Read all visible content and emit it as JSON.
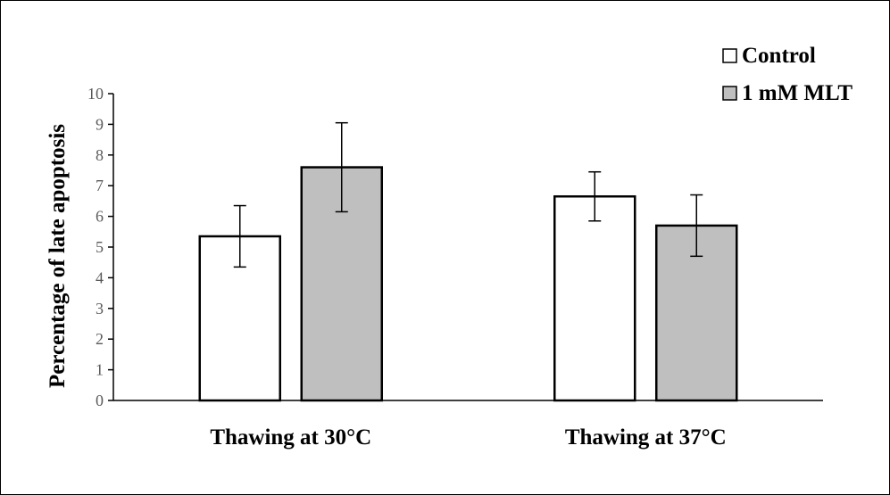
{
  "chart_data": {
    "type": "bar",
    "title": "",
    "xlabel": "",
    "ylabel": "Percentage of late apoptosis",
    "categories": [
      "Thawing at 30°C",
      "Thawing at 37°C"
    ],
    "series": [
      {
        "name": "Control",
        "values": [
          5.35,
          6.65
        ],
        "errors": [
          1.0,
          0.8
        ],
        "color": "#ffffff"
      },
      {
        "name": "1 mM MLT",
        "values": [
          7.6,
          5.7
        ],
        "errors": [
          1.45,
          1.0
        ],
        "color": "#bfbfbf"
      }
    ],
    "ylim": [
      0,
      10
    ],
    "yticks": [
      "0",
      "1",
      "2",
      "3",
      "4",
      "5",
      "6",
      "7",
      "8",
      "9",
      "10"
    ],
    "grid": false,
    "legend_position": "top-right",
    "colors": {
      "edge": "#000000",
      "axis": "#000000",
      "tick_text": "#595959"
    }
  }
}
